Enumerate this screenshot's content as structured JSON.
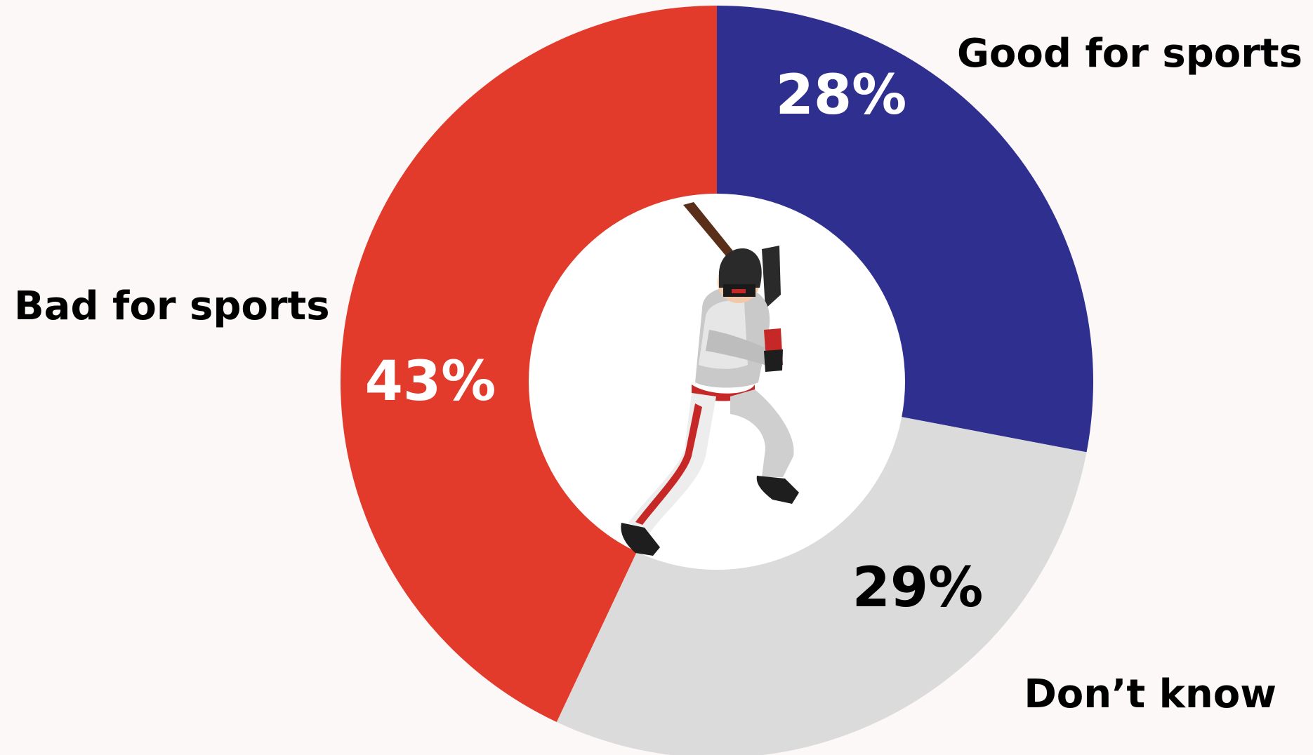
{
  "chart_data": {
    "type": "pie",
    "variant": "donut",
    "start": "top",
    "direction": "clockwise",
    "slices": [
      {
        "label": "Good for sports",
        "value": 28,
        "display": "28%",
        "color": "#2e2f8f",
        "text_color": "#ffffff"
      },
      {
        "label": "Don’t know",
        "value": 29,
        "display": "29%",
        "color": "#dcdbdc",
        "text_color": "#000000"
      },
      {
        "label": "Bad for sports",
        "value": 43,
        "display": "43%",
        "color": "#e23a2b",
        "text_color": "#ffffff"
      }
    ]
  },
  "colors": {
    "background": "#fcf8f7",
    "hole": "#ffffff"
  },
  "center_icon": "baseball-batter-illustration"
}
